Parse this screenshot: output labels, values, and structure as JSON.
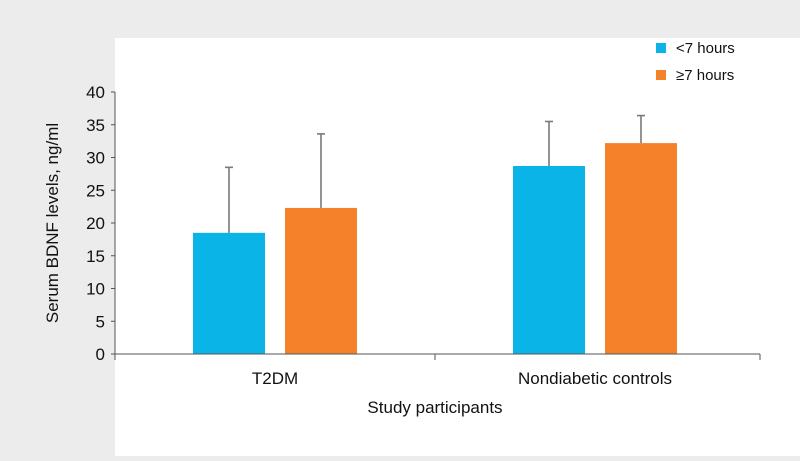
{
  "chart_data": {
    "type": "bar",
    "title": "",
    "xlabel": "Study participants",
    "ylabel": "Serum BDNF levels, ng/ml",
    "categories": [
      "T2DM",
      "Nondiabetic controls"
    ],
    "ylim": [
      0,
      40
    ],
    "yticks": [
      0,
      5,
      10,
      15,
      20,
      25,
      30,
      35,
      40
    ],
    "grid": false,
    "legend_position": "top-right",
    "series": [
      {
        "name": "<7 hours",
        "color": "#0ab4e6",
        "values": [
          18.5,
          28.7
        ],
        "error": [
          10.0,
          6.8
        ]
      },
      {
        "name": "≥7 hours",
        "color": "#f5822a",
        "values": [
          22.3,
          32.2
        ],
        "error": [
          11.3,
          4.2
        ]
      }
    ]
  },
  "colors": {
    "background": "#ececec",
    "plot_area": "#ffffff",
    "axis": "#555555",
    "error_bar": "#7a7a7a"
  }
}
